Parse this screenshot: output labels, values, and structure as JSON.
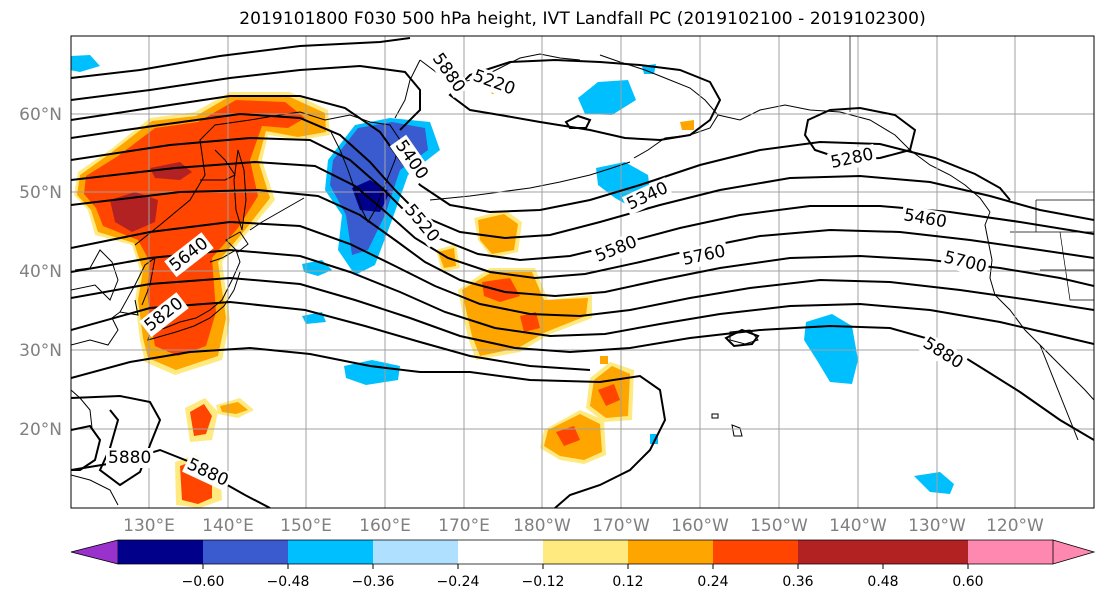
{
  "title": "2019101800 F030 500 hPa height, IVT Landfall PC (2019102100 - 2019102300)",
  "map": {
    "lat_labels": [
      "60°N",
      "50°N",
      "40°N",
      "30°N",
      "20°N"
    ],
    "lon_labels": [
      "130°E",
      "140°E",
      "150°E",
      "160°E",
      "170°E",
      "180°W",
      "170°W",
      "160°W",
      "150°W",
      "140°W",
      "130°W",
      "120°W"
    ],
    "contour_labels": [
      "5880",
      "5220",
      "5280",
      "5400",
      "5340",
      "5460",
      "5520",
      "5580",
      "5760",
      "5700",
      "5640",
      "5820",
      "5880",
      "5880",
      "5880"
    ],
    "projection": "equirectangular",
    "gridlines": true
  },
  "colorbar": {
    "ticks": [
      "−0.60",
      "−0.48",
      "−0.36",
      "−0.24",
      "−0.12",
      "0.12",
      "0.24",
      "0.36",
      "0.48",
      "0.60"
    ],
    "colors": [
      "#9932cc",
      "#00008b",
      "#3a5bcf",
      "#00bfff",
      "#b0e0ff",
      "#ffffff",
      "#ffea80",
      "#ffa500",
      "#ff4500",
      "#b22222",
      "#ff88b0"
    ],
    "extend": "both"
  }
}
